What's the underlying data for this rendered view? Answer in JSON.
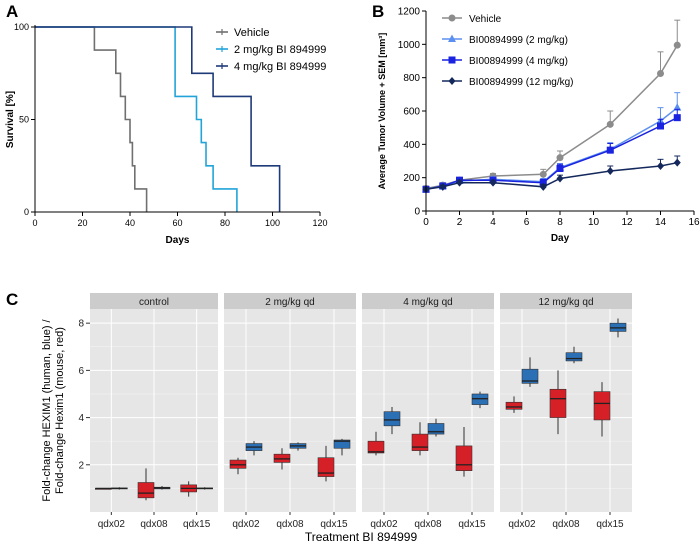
{
  "panels": {
    "a": "A",
    "b": "B",
    "c": "C"
  },
  "chart_data": [
    {
      "id": "A",
      "type": "line",
      "subtype": "kaplan-meier",
      "title": "",
      "xlabel": "Days",
      "ylabel": "Survival [%]",
      "xlim": [
        0,
        120
      ],
      "ylim": [
        0,
        100
      ],
      "xticks": [
        "0",
        "20",
        "40",
        "60",
        "80",
        "100",
        "120"
      ],
      "yticks": [
        "0",
        "50",
        "100"
      ],
      "grid": false,
      "legend_position": "top-right",
      "series": [
        {
          "name": "Vehicle",
          "color": "#707070",
          "steps": [
            [
              0,
              100
            ],
            [
              25,
              100
            ],
            [
              25,
              87.5
            ],
            [
              34,
              87.5
            ],
            [
              34,
              75
            ],
            [
              36,
              75
            ],
            [
              36,
              62.5
            ],
            [
              38,
              62.5
            ],
            [
              38,
              50
            ],
            [
              40,
              50
            ],
            [
              40,
              37.5
            ],
            [
              41,
              37.5
            ],
            [
              41,
              25
            ],
            [
              42,
              25
            ],
            [
              42,
              12.5
            ],
            [
              47,
              12.5
            ],
            [
              47,
              0
            ]
          ]
        },
        {
          "name": "2 mg/kg BI 894999",
          "color": "#22a4d8",
          "steps": [
            [
              0,
              100
            ],
            [
              59,
              100
            ],
            [
              59,
              62.5
            ],
            [
              68,
              62.5
            ],
            [
              68,
              50
            ],
            [
              70,
              50
            ],
            [
              70,
              37.5
            ],
            [
              72,
              37.5
            ],
            [
              72,
              25
            ],
            [
              75,
              25
            ],
            [
              75,
              12.5
            ],
            [
              85,
              12.5
            ],
            [
              85,
              0
            ]
          ]
        },
        {
          "name": "4 mg/kg BI 894999",
          "color": "#1e3a78",
          "steps": [
            [
              0,
              100
            ],
            [
              66,
              100
            ],
            [
              66,
              75
            ],
            [
              75,
              75
            ],
            [
              75,
              62.5
            ],
            [
              91,
              62.5
            ],
            [
              91,
              25
            ],
            [
              103,
              25
            ],
            [
              103,
              0
            ]
          ]
        }
      ]
    },
    {
      "id": "B",
      "type": "line",
      "title": "",
      "xlabel": "Day",
      "ylabel": "Average Tumor Volume + SEM [mm³]",
      "xlim": [
        0,
        16
      ],
      "ylim": [
        0,
        1200
      ],
      "xticks": [
        "0",
        "2",
        "4",
        "6",
        "8",
        "10",
        "12",
        "14",
        "16"
      ],
      "yticks": [
        "0",
        "200",
        "400",
        "600",
        "800",
        "1000",
        "1200"
      ],
      "grid": false,
      "legend_position": "top-left",
      "series": [
        {
          "name": "Vehicle",
          "color": "#8c8c8c",
          "marker": "circle",
          "x": [
            0,
            1,
            2,
            4,
            7,
            8,
            11,
            14,
            15
          ],
          "values": [
            135,
            155,
            185,
            210,
            220,
            320,
            520,
            825,
            995
          ],
          "sem": [
            15,
            15,
            15,
            15,
            30,
            40,
            80,
            130,
            150
          ]
        },
        {
          "name": "BI00894999 (2 mg/kg)",
          "color": "#5b8ff0",
          "marker": "triangle",
          "x": [
            0,
            1,
            2,
            4,
            7,
            8,
            11,
            14,
            15
          ],
          "values": [
            130,
            150,
            180,
            190,
            175,
            260,
            370,
            540,
            620
          ],
          "sem": [
            15,
            15,
            15,
            15,
            20,
            25,
            40,
            80,
            90
          ]
        },
        {
          "name": "BI00894999 (4 mg/kg)",
          "color": "#1a23e0",
          "marker": "square",
          "x": [
            0,
            1,
            2,
            4,
            7,
            8,
            11,
            14,
            15
          ],
          "values": [
            130,
            150,
            185,
            185,
            170,
            255,
            365,
            510,
            560
          ],
          "sem": [
            15,
            15,
            15,
            15,
            20,
            25,
            40,
            40,
            50
          ]
        },
        {
          "name": "BI00894999 (12 mg/kg)",
          "color": "#14285c",
          "marker": "diamond",
          "x": [
            0,
            1,
            2,
            4,
            7,
            8,
            11,
            14,
            15
          ],
          "values": [
            130,
            145,
            170,
            170,
            145,
            195,
            240,
            270,
            290
          ],
          "sem": [
            10,
            10,
            15,
            15,
            15,
            20,
            30,
            40,
            40
          ]
        }
      ]
    },
    {
      "id": "C",
      "type": "box",
      "title": "",
      "xlabel": "Treatment BI 894999",
      "ylabel_lines": [
        "Fold-change HEXIM1 (human, blue) /",
        "Fold-change Hexim1 (mouse, red)"
      ],
      "ylim": [
        0,
        8.6
      ],
      "yticks": [
        "2",
        "4",
        "6",
        "8"
      ],
      "grid": true,
      "facets": [
        {
          "label": "control",
          "categories": [
            "qdx02",
            "qdx08",
            "qdx15"
          ],
          "boxes": [
            {
              "cat": 0,
              "species": "mouse",
              "stats": [
                1.0,
                1.0,
                1.0,
                1.0,
                1.0
              ]
            },
            {
              "cat": 0,
              "species": "human",
              "stats": [
                0.95,
                0.98,
                1.0,
                1.02,
                1.05
              ]
            },
            {
              "cat": 1,
              "species": "mouse",
              "stats": [
                0.5,
                0.6,
                0.8,
                1.25,
                1.85
              ]
            },
            {
              "cat": 1,
              "species": "human",
              "stats": [
                0.95,
                0.98,
                1.02,
                1.05,
                1.1
              ]
            },
            {
              "cat": 2,
              "species": "mouse",
              "stats": [
                0.65,
                0.85,
                1.0,
                1.15,
                1.3
              ]
            },
            {
              "cat": 2,
              "species": "human",
              "stats": [
                0.95,
                0.98,
                1.0,
                1.02,
                1.05
              ]
            }
          ]
        },
        {
          "label": "2 mg/kg qd",
          "categories": [
            "qdx02",
            "qdx08",
            "qdx15"
          ],
          "boxes": [
            {
              "cat": 0,
              "species": "mouse",
              "stats": [
                1.6,
                1.85,
                2.0,
                2.2,
                2.3
              ]
            },
            {
              "cat": 0,
              "species": "human",
              "stats": [
                2.4,
                2.6,
                2.75,
                2.9,
                3.0
              ]
            },
            {
              "cat": 1,
              "species": "mouse",
              "stats": [
                1.8,
                2.1,
                2.25,
                2.45,
                2.7
              ]
            },
            {
              "cat": 1,
              "species": "human",
              "stats": [
                2.6,
                2.7,
                2.8,
                2.9,
                2.95
              ]
            },
            {
              "cat": 2,
              "species": "mouse",
              "stats": [
                1.3,
                1.5,
                1.65,
                2.3,
                2.8
              ]
            },
            {
              "cat": 2,
              "species": "human",
              "stats": [
                2.4,
                2.7,
                3.0,
                3.05,
                3.1
              ]
            }
          ]
        },
        {
          "label": "4 mg/kg qd",
          "categories": [
            "qdx02",
            "qdx08",
            "qdx15"
          ],
          "boxes": [
            {
              "cat": 0,
              "species": "mouse",
              "stats": [
                2.4,
                2.5,
                2.55,
                3.0,
                3.4
              ]
            },
            {
              "cat": 0,
              "species": "human",
              "stats": [
                3.3,
                3.65,
                3.9,
                4.25,
                4.45
              ]
            },
            {
              "cat": 1,
              "species": "mouse",
              "stats": [
                2.4,
                2.6,
                2.75,
                3.3,
                3.8
              ]
            },
            {
              "cat": 1,
              "species": "human",
              "stats": [
                3.2,
                3.3,
                3.4,
                3.75,
                3.95
              ]
            },
            {
              "cat": 2,
              "species": "mouse",
              "stats": [
                1.5,
                1.75,
                2.0,
                2.8,
                3.6
              ]
            },
            {
              "cat": 2,
              "species": "human",
              "stats": [
                4.4,
                4.55,
                4.8,
                5.0,
                5.1
              ]
            }
          ]
        },
        {
          "label": "12 mg/kg qd",
          "categories": [
            "qdx02",
            "qdx08",
            "qdx15"
          ],
          "boxes": [
            {
              "cat": 0,
              "species": "mouse",
              "stats": [
                4.2,
                4.35,
                4.45,
                4.65,
                4.9
              ]
            },
            {
              "cat": 0,
              "species": "human",
              "stats": [
                5.3,
                5.45,
                5.55,
                6.05,
                6.55
              ]
            },
            {
              "cat": 1,
              "species": "mouse",
              "stats": [
                3.3,
                4.0,
                4.8,
                5.2,
                6.0
              ]
            },
            {
              "cat": 1,
              "species": "human",
              "stats": [
                6.3,
                6.4,
                6.5,
                6.75,
                7.0
              ]
            },
            {
              "cat": 2,
              "species": "mouse",
              "stats": [
                3.2,
                3.9,
                4.6,
                5.1,
                5.5
              ]
            },
            {
              "cat": 2,
              "species": "human",
              "stats": [
                7.4,
                7.65,
                7.8,
                8.0,
                8.2
              ]
            }
          ]
        }
      ]
    }
  ],
  "colors": {
    "mouse_box": "#d62027",
    "human_box": "#2b6fb5",
    "panel_bg": "#e6e6e6",
    "strip_bg": "#cccccc",
    "grid": "#ffffff"
  }
}
